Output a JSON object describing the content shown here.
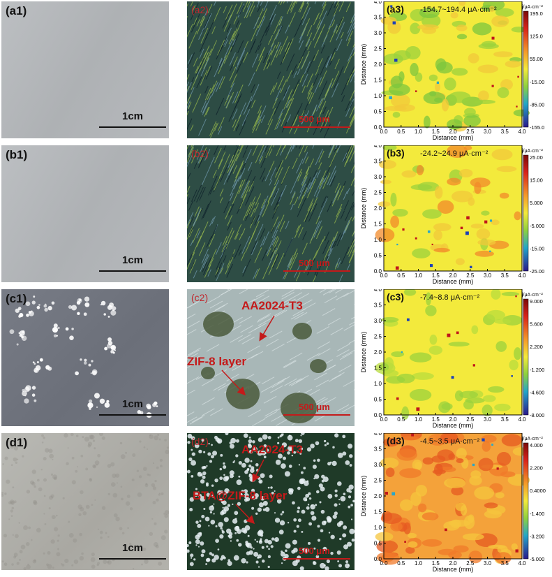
{
  "rows": [
    {
      "photo_label": "(a1)",
      "photo_scale": "1cm",
      "micro_label": "(a2)",
      "micro_scale": "500 μm",
      "map_label": "(a3)",
      "map_range": "-154.7~194.4 μA·cm⁻²",
      "colorbar_ticks": [
        "195.0",
        "125.0",
        "55.00",
        "-15.00",
        "-85.00",
        "-155.0"
      ],
      "annotations": []
    },
    {
      "photo_label": "(b1)",
      "photo_scale": "1cm",
      "micro_label": "(b2)",
      "micro_scale": "500 μm",
      "map_label": "(b3)",
      "map_range": "-24.2~24.9 μA·cm⁻²",
      "colorbar_ticks": [
        "25.00",
        "15.00",
        "5.000",
        "-5.000",
        "-15.00",
        "-25.00"
      ],
      "annotations": []
    },
    {
      "photo_label": "(c1)",
      "photo_scale": "1cm",
      "micro_label": "(c2)",
      "micro_scale": "500 μm",
      "map_label": "(c3)",
      "map_range": "-7.4~8.8 μA·cm⁻²",
      "colorbar_ticks": [
        "9.000",
        "5.600",
        "2.200",
        "-1.200",
        "-4.600",
        "-8.000"
      ],
      "annotations": [
        "AA2024-T3",
        "ZIF-8 layer"
      ]
    },
    {
      "photo_label": "(d1)",
      "photo_scale": "1cm",
      "micro_label": "(d2)",
      "micro_scale": "500 μm",
      "map_label": "(d3)",
      "map_range": "-4.5~3.5 μA·cm⁻²",
      "colorbar_ticks": [
        "4.000",
        "2.200",
        "0.4000",
        "-1.400",
        "-3.200",
        "-5.000"
      ],
      "annotations": [
        "AA2024-T3",
        "BTA@ZIF-8 layer"
      ]
    }
  ],
  "map_axes": {
    "xlabel": "Distance (mm)",
    "ylabel": "Distance (mm)",
    "ticks": [
      "0.0",
      "0.5",
      "1.0",
      "1.5",
      "2.0",
      "2.5",
      "3.0",
      "3.5",
      "4.0"
    ],
    "colorbar_unit": "j/μA·cm⁻²"
  },
  "colors": {
    "scale_red": "#c41a1a",
    "map_yellow": "#f3ea3c",
    "map_green": "#9bd23c",
    "map_orange": "#f4a23a"
  }
}
